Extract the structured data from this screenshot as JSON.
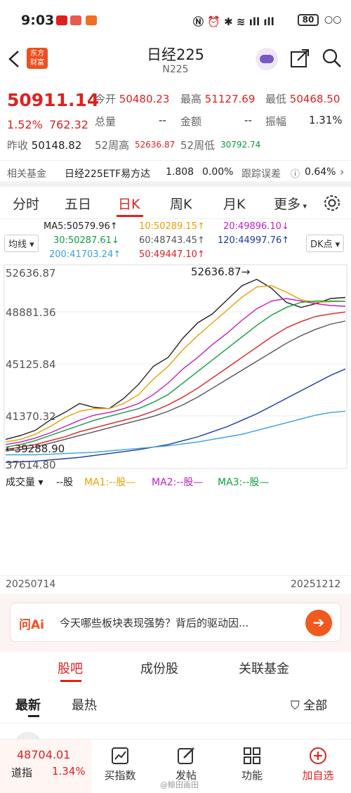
{
  "status": {
    "time": "9:03",
    "battery": "80"
  },
  "nav": {
    "title": "日经225",
    "subtitle": "N225",
    "logo_line1": "东方",
    "logo_line2": "财富"
  },
  "quote": {
    "price": "50911.14",
    "pct": "1.52%",
    "change": "762.32",
    "open_label": "今开",
    "open": "50480.23",
    "high_label": "最高",
    "high": "51127.69",
    "low_label": "最低",
    "low": "50468.50",
    "vol_label": "总量",
    "vol": "--",
    "amount_label": "金额",
    "amount": "--",
    "amp_label": "振幅",
    "amp": "1.31%",
    "prev_label": "昨收",
    "prev": "50148.82",
    "wk52h_label": "52周高",
    "wk52h": "52636.87",
    "wk52l_label": "52周低",
    "wk52l": "30792.74"
  },
  "fund": {
    "label": "相关基金",
    "name": "日经225ETF易方达",
    "price": "1.808",
    "chg": "0.00%",
    "track_label": "跟踪误差",
    "track": "0.64%"
  },
  "tabs": [
    "分时",
    "五日",
    "日K",
    "周K",
    "月K",
    "更多"
  ],
  "active_tab": 2,
  "chart_controls": {
    "ma_select": "均线",
    "dk": "DK点"
  },
  "ma_legend": [
    {
      "text": "MA5:50579.96↑",
      "color": "#222222"
    },
    {
      "text": "10:50289.15↑",
      "color": "#e8a000"
    },
    {
      "text": "20:49896.10↓",
      "color": "#c020c0"
    },
    {
      "text": "30:50287.61↓",
      "color": "#10a040"
    },
    {
      "text": "60:48743.45↑",
      "color": "#555555"
    },
    {
      "text": "120:44997.76↑",
      "color": "#1a3aa8"
    },
    {
      "text": "200:41703.24↑",
      "color": "#3aa0e0"
    },
    {
      "text": "50:49447.10↑",
      "color": "#e02020"
    }
  ],
  "chart_data": {
    "type": "line",
    "y_ticks": [
      "52636.87",
      "48881.36",
      "45125.84",
      "41370.32",
      "37614.80"
    ],
    "ylim": [
      37614.8,
      52636.87
    ],
    "max_label": "52636.87",
    "min_label": "39288.90",
    "x_start": "20250714",
    "x_end": "20251212",
    "series": [
      {
        "name": "MA5",
        "color": "#222222",
        "values": [
          39500,
          39800,
          40200,
          41000,
          41600,
          42300,
          42000,
          41900,
          42700,
          43800,
          45200,
          45900,
          47400,
          48600,
          49300,
          50400,
          51500,
          52000,
          51300,
          50200,
          49800,
          50100,
          50500,
          50580
        ]
      },
      {
        "name": "10",
        "color": "#e8a000",
        "values": [
          39300,
          39500,
          39900,
          40500,
          41200,
          41700,
          41900,
          41900,
          42300,
          43000,
          44200,
          45200,
          46500,
          47600,
          48600,
          49600,
          50600,
          51400,
          51500,
          51000,
          50400,
          50200,
          50250,
          50290
        ]
      },
      {
        "name": "20",
        "color": "#c020c0",
        "values": [
          39100,
          39300,
          39600,
          40000,
          40500,
          41000,
          41400,
          41600,
          41900,
          42300,
          43000,
          43900,
          45000,
          45900,
          46900,
          47800,
          48800,
          49700,
          50300,
          50500,
          50300,
          50100,
          49950,
          49896
        ]
      },
      {
        "name": "30",
        "color": "#10a040",
        "values": [
          38900,
          39100,
          39400,
          39800,
          40200,
          40600,
          41000,
          41300,
          41600,
          41900,
          42400,
          43000,
          43900,
          44800,
          45700,
          46600,
          47500,
          48400,
          49200,
          49800,
          50200,
          50300,
          50300,
          50288
        ]
      },
      {
        "name": "50",
        "color": "#e02020",
        "values": [
          38700,
          38900,
          39100,
          39400,
          39700,
          40100,
          40400,
          40700,
          41000,
          41300,
          41700,
          42200,
          42800,
          43500,
          44300,
          45100,
          45900,
          46700,
          47500,
          48200,
          48700,
          49100,
          49300,
          49447
        ]
      },
      {
        "name": "60",
        "color": "#555555",
        "values": [
          38600,
          38700,
          38900,
          39200,
          39500,
          39800,
          40100,
          40400,
          40700,
          41000,
          41300,
          41700,
          42200,
          42800,
          43500,
          44200,
          44900,
          45600,
          46300,
          47000,
          47600,
          48100,
          48500,
          48743
        ]
      },
      {
        "name": "120",
        "color": "#1a3aa8",
        "values": [
          37700,
          37750,
          37800,
          37900,
          38000,
          38100,
          38250,
          38400,
          38550,
          38700,
          38900,
          39100,
          39400,
          39700,
          40100,
          40500,
          41000,
          41500,
          42100,
          42700,
          43300,
          43900,
          44500,
          44998
        ]
      },
      {
        "name": "200",
        "color": "#3aa0e0",
        "values": [
          38300,
          38300,
          38300,
          38350,
          38400,
          38450,
          38500,
          38600,
          38700,
          38800,
          38900,
          39000,
          39150,
          39300,
          39500,
          39700,
          39900,
          40200,
          40500,
          40800,
          41100,
          41400,
          41600,
          41703
        ]
      }
    ]
  },
  "volume": {
    "label": "成交量",
    "unit": "--股",
    "ma1": "MA1:--股—",
    "ma2": "MA2:--股—",
    "ma3": "MA3:--股—"
  },
  "ai": {
    "logo": "问Ai",
    "text": "今天哪些板块表现强势？背后的驱动因..."
  },
  "section_tabs": [
    "股吧",
    "成份股",
    "关联基金"
  ],
  "sort": {
    "latest": "最新",
    "hot": "最热",
    "filter": "全部"
  },
  "bottom": {
    "index": "48704.01",
    "index_name": "道指",
    "index_pct": "1.34%",
    "buy": "买指数",
    "post": "发帖",
    "func": "功能",
    "add": "加自选"
  },
  "watermark": "@鲸田画田"
}
